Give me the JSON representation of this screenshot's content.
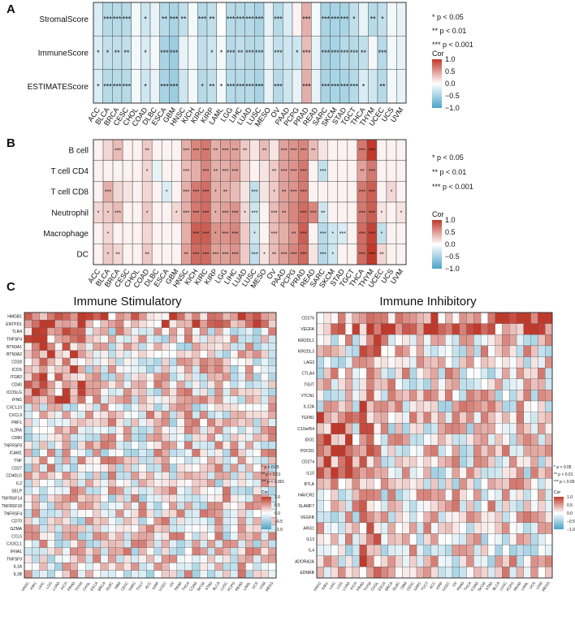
{
  "colors": {
    "pos": "#c0392b",
    "neg": "#4aa3c7",
    "mid": "#ffffff",
    "grid": "#333333"
  },
  "chart_data": [
    {
      "panel": "A",
      "type": "heatmap",
      "rows": [
        "StromalScore",
        "ImmuneScore",
        "ESTIMATEScore"
      ],
      "columns": [
        "ACC",
        "BLCA",
        "BRCA",
        "CESC",
        "CHOL",
        "COAD",
        "DLBC",
        "ESCA",
        "GBM",
        "HNSC",
        "KICH",
        "KIRC",
        "KIRP",
        "LAML",
        "LGG",
        "LIHC",
        "LUAD",
        "LUSC",
        "MESO",
        "OV",
        "PAAD",
        "PCPG",
        "PRAD",
        "READ",
        "SARC",
        "SKCM",
        "STAD",
        "TGCT",
        "THCA",
        "THYM",
        "UCEC",
        "UCS",
        "UVM"
      ],
      "values": [
        [
          -0.15,
          -0.3,
          -0.3,
          -0.3,
          -0.05,
          -0.2,
          -0.1,
          -0.3,
          -0.35,
          -0.25,
          -0.05,
          -0.3,
          -0.25,
          0.0,
          -0.3,
          -0.3,
          -0.3,
          -0.35,
          -0.1,
          -0.3,
          -0.15,
          0.05,
          0.3,
          -0.05,
          -0.35,
          -0.35,
          -0.35,
          -0.25,
          -0.1,
          -0.3,
          -0.25,
          -0.05,
          -0.1
        ],
        [
          -0.15,
          -0.25,
          -0.25,
          -0.25,
          -0.05,
          -0.15,
          -0.05,
          -0.35,
          -0.4,
          -0.1,
          -0.05,
          -0.25,
          -0.2,
          -0.05,
          -0.3,
          -0.25,
          -0.3,
          -0.3,
          -0.1,
          -0.25,
          -0.2,
          -0.2,
          0.25,
          -0.1,
          -0.35,
          -0.35,
          -0.3,
          -0.3,
          -0.25,
          -0.05,
          -0.3,
          -0.05,
          -0.1
        ],
        [
          -0.15,
          -0.3,
          -0.3,
          -0.3,
          -0.05,
          -0.2,
          -0.1,
          -0.35,
          -0.4,
          -0.2,
          -0.05,
          -0.3,
          -0.25,
          -0.05,
          -0.3,
          -0.3,
          -0.3,
          -0.35,
          -0.1,
          -0.3,
          -0.2,
          -0.1,
          0.3,
          -0.1,
          -0.35,
          -0.35,
          -0.35,
          -0.3,
          -0.15,
          -0.2,
          -0.3,
          -0.05,
          -0.1
        ]
      ],
      "stars": [
        [
          "",
          "***",
          "***",
          "***",
          "",
          "*",
          "",
          "**",
          "***",
          "**",
          "",
          "***",
          "**",
          "",
          "***",
          "***",
          "***",
          "***",
          "",
          "***",
          "",
          "",
          "***",
          "",
          "***",
          "***",
          "***",
          "*",
          "",
          "**",
          "*",
          "",
          ""
        ],
        [
          "*",
          "*",
          "**",
          "**",
          "",
          "*",
          "",
          "***",
          "***",
          "",
          "",
          "",
          "*",
          "*",
          "***",
          "**",
          "***",
          "***",
          "",
          "***",
          "",
          "*",
          "***",
          "",
          "***",
          "***",
          "***",
          "***",
          "**",
          "",
          "***",
          "",
          ""
        ],
        [
          "*",
          "***",
          "***",
          "***",
          "",
          "*",
          "",
          "***",
          "***",
          "",
          "",
          "*",
          "**",
          "*",
          "***",
          "***",
          "***",
          "***",
          "",
          "***",
          "",
          "",
          "***",
          "",
          "***",
          "***",
          "***",
          "***",
          "*",
          "",
          "**",
          "",
          ""
        ]
      ],
      "legend": {
        "title": "Cor",
        "ticks": [
          "1.0",
          "0.5",
          "0.0",
          "−0.5",
          "−1.0"
        ],
        "significance": [
          "* p < 0.05",
          "** p < 0.01",
          "*** p < 0.001"
        ]
      }
    },
    {
      "panel": "B",
      "type": "heatmap",
      "rows": [
        "B cell",
        "T cell CD4",
        "T cell CD8",
        "Neutrophil",
        "Macrophage",
        "DC"
      ],
      "columns": [
        "ACC",
        "BLCA",
        "BRCA",
        "CESC",
        "CHOL",
        "COAD",
        "DLBC",
        "ESCA",
        "GBM",
        "HNSC",
        "KICH",
        "KIRC",
        "KIRP",
        "LGG",
        "LIHC",
        "LUAD",
        "LUSC",
        "MESO",
        "OV",
        "PAAD",
        "PCPG",
        "PRAD",
        "READ",
        "SARC",
        "SKCM",
        "STAD",
        "TGCT",
        "THCA",
        "THYM",
        "UCEC",
        "UCS",
        "UVM"
      ],
      "values": [
        [
          0.05,
          0.15,
          0.25,
          0.05,
          0.05,
          0.2,
          0.05,
          0.05,
          0.05,
          0.3,
          0.45,
          0.5,
          0.3,
          0.35,
          0.35,
          0.2,
          0.1,
          0.25,
          0.1,
          0.35,
          0.4,
          0.45,
          0.25,
          0.1,
          0.05,
          0.05,
          0.05,
          0.5,
          0.85,
          0.05,
          0.05,
          0.05
        ],
        [
          0.05,
          0.05,
          0.05,
          0.05,
          0.05,
          0.15,
          -0.1,
          0.05,
          0.05,
          0.25,
          0.3,
          0.45,
          0.3,
          0.3,
          0.35,
          0.15,
          0.05,
          0.1,
          0.2,
          0.35,
          0.4,
          0.5,
          0.05,
          -0.25,
          0.05,
          0.05,
          0.05,
          0.35,
          0.5,
          0.05,
          0.05,
          0.05
        ],
        [
          0.05,
          0.3,
          0.15,
          0.1,
          0.05,
          0.15,
          0.05,
          -0.15,
          0.05,
          0.3,
          0.5,
          0.55,
          0.3,
          0.3,
          0.25,
          0.1,
          -0.25,
          0.1,
          0.2,
          0.35,
          0.4,
          0.5,
          0.05,
          0.05,
          0.05,
          0.05,
          0.05,
          0.5,
          0.6,
          0.05,
          0.15,
          0.05
        ],
        [
          0.15,
          0.2,
          0.25,
          0.05,
          0.05,
          0.2,
          0.05,
          0.05,
          0.15,
          0.3,
          0.5,
          0.55,
          0.3,
          0.35,
          0.4,
          0.15,
          -0.2,
          0.05,
          0.25,
          0.35,
          0.45,
          0.55,
          0.45,
          -0.2,
          0.05,
          0.05,
          0.05,
          0.5,
          0.6,
          0.1,
          0.05,
          0.1
        ],
        [
          0.05,
          0.15,
          0.05,
          0.05,
          0.05,
          0.15,
          0.05,
          0.05,
          0.05,
          0.3,
          0.6,
          0.6,
          0.4,
          0.4,
          0.45,
          0.2,
          -0.2,
          0.05,
          0.25,
          0.3,
          0.4,
          0.6,
          0.05,
          -0.3,
          -0.2,
          -0.15,
          0.05,
          0.55,
          0.7,
          -0.25,
          0.05,
          0.05
        ],
        [
          0.05,
          0.2,
          0.15,
          0.05,
          0.05,
          0.2,
          0.05,
          0.05,
          0.05,
          0.35,
          0.55,
          0.55,
          0.35,
          0.35,
          0.4,
          0.2,
          -0.25,
          0.1,
          0.25,
          0.35,
          0.45,
          0.55,
          0.1,
          -0.3,
          -0.2,
          0.05,
          0.05,
          0.55,
          0.85,
          0.15,
          0.05,
          0.05
        ]
      ],
      "stars": [
        [
          "",
          "",
          "***",
          "",
          "",
          "**",
          "",
          "",
          "",
          "***",
          "***",
          "***",
          "**",
          "***",
          "***",
          "**",
          "",
          "**",
          "",
          "***",
          "***",
          "***",
          "**",
          "",
          "",
          "",
          "",
          "***",
          "***",
          "",
          "",
          ""
        ],
        [
          "",
          "",
          "",
          "",
          "",
          "*",
          "",
          "",
          "",
          "***",
          "",
          "***",
          "**",
          "***",
          "***",
          "",
          "",
          "",
          "**",
          "***",
          "***",
          "***",
          "",
          "***",
          "",
          "",
          "",
          "**",
          "***",
          "",
          "",
          ""
        ],
        [
          "",
          "***",
          "",
          "",
          "",
          "",
          "",
          "*",
          "",
          "***",
          "***",
          "***",
          "*",
          "**",
          "",
          "",
          "***",
          "",
          "*",
          "**",
          "***",
          "***",
          "",
          "",
          "",
          "",
          "",
          "***",
          "***",
          "",
          "*",
          ""
        ],
        [
          "*",
          "*",
          "***",
          "",
          "",
          "*",
          "",
          "",
          "*",
          "***",
          "***",
          "***",
          "*",
          "***",
          "***",
          "*",
          "***",
          "",
          "***",
          "**",
          "",
          "***",
          "***",
          "**",
          "",
          "",
          "",
          "***",
          "***",
          "*",
          "",
          "*"
        ],
        [
          "",
          "*",
          "",
          "",
          "",
          "",
          "",
          "",
          "",
          "",
          "***",
          "***",
          "*",
          "***",
          "***",
          "",
          "*",
          "",
          "***",
          "",
          "**",
          "***",
          "",
          "***",
          "*",
          "***",
          "",
          "***",
          "***",
          "*",
          "",
          ""
        ],
        [
          "",
          "*",
          "**",
          "",
          "",
          "**",
          "",
          "",
          "",
          "**",
          "***",
          "***",
          "***",
          "***",
          "***",
          "",
          "***",
          "*",
          "**",
          "***",
          "***",
          "***",
          "",
          "***",
          "*",
          "",
          "",
          "***",
          "***",
          "**",
          "",
          ""
        ]
      ],
      "legend": {
        "title": "Cor",
        "ticks": [
          "1.0",
          "0.5",
          "0.0",
          "−0.5",
          "−1.0"
        ],
        "significance": [
          "* p < 0.05",
          "** p < 0.01",
          "*** p < 0.001"
        ]
      }
    },
    {
      "panel": "C",
      "type": "heatmap",
      "title": "Immune Stimulatory",
      "rows": [
        "HMGB1",
        "ENTPD1",
        "TLR4",
        "TNFSF4",
        "BTN3A1",
        "BTN3A2",
        "CD28",
        "ICOS",
        "ITGB2",
        "CD40",
        "ICOSLG",
        "IFNG",
        "CXCL10",
        "CXCL9",
        "PRF1",
        "IL2RA",
        "CD80",
        "TNFRSF9",
        "ICAM1",
        "TNF",
        "CD27",
        "CD40LG",
        "IL2",
        "SELP",
        "TNFRSF14",
        "TNFRSF18",
        "TNFRSF4",
        "CD70",
        "GZMA",
        "CCL5",
        "CX3CL1",
        "IFNA1",
        "TNFSF9",
        "IL1A",
        "IL1B"
      ],
      "columns": [
        "HNSC",
        "KIRC",
        "LIHC",
        "LGG",
        "LUAD",
        "KICH",
        "PRAD",
        "THYM",
        "CHOL",
        "ESCA",
        "BRCA",
        "DLBC",
        "GBM",
        "CESC",
        "SARC",
        "TGCT",
        "ACC",
        "KIRP",
        "UCEC",
        "OV",
        "PAAD",
        "THCA",
        "COAD",
        "SKCM",
        "STAD",
        "BLCA",
        "LUSC",
        "PCPG",
        "READ",
        "LAML",
        "UCS",
        "UVM",
        "MESO"
      ],
      "legend": {
        "title": "Cor",
        "ticks": [
          "1.0",
          "0.5",
          "0.0",
          "−0.5",
          "−1.0"
        ],
        "significance": [
          "* p < 0.05",
          "** p < 0.01",
          "*** p < 0.001"
        ]
      }
    },
    {
      "panel": "C",
      "type": "heatmap",
      "title": "Immune Inhibitory",
      "rows": [
        "CD276",
        "VEGFA",
        "KIR2DL1",
        "KIR2DL3",
        "LAG3",
        "CTLA4",
        "TIGIT",
        "VTCN1",
        "IL12A",
        "TGFB1",
        "C10orf54",
        "IDO1",
        "PDCD1",
        "CD274",
        "IL10",
        "BTLA",
        "HAVCR2",
        "SLAMF7",
        "VEGFB",
        "ARG1",
        "IL13",
        "IL4",
        "ADORA2A",
        "EDNRB"
      ],
      "columns": [
        "HNSC",
        "KIRC",
        "LIHC",
        "LGG",
        "LUAD",
        "KICH",
        "PRAD",
        "THYM",
        "CHOL",
        "ESCA",
        "BRCA",
        "DLBC",
        "GBM",
        "CESC",
        "SARC",
        "TGCT",
        "ACC",
        "KIRP",
        "UCEC",
        "OV",
        "PAAD",
        "THCA",
        "COAD",
        "SKCM",
        "STAD",
        "BLCA",
        "LUSC",
        "PCPG",
        "READ",
        "LAML",
        "UCS",
        "UVM",
        "MESO"
      ],
      "legend": {
        "title": "Cor",
        "ticks": [
          "1.0",
          "0.5",
          "0.0",
          "−0.5",
          "−1.0"
        ],
        "significance": [
          "* p < 0.05",
          "** p < 0.01",
          "*** p < 0.001"
        ]
      }
    }
  ],
  "panel_labels": [
    "A",
    "B",
    "C"
  ]
}
